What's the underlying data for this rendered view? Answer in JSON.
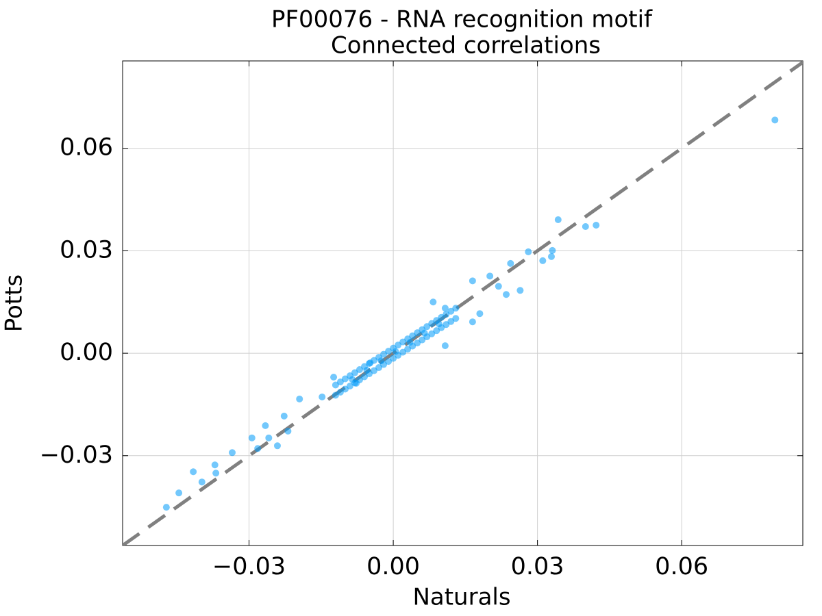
{
  "chart_data": {
    "type": "scatter",
    "title": "PF00076 - RNA recognition motif",
    "subtitle": "Connected correlations",
    "x_label": "Naturals",
    "y_label": "Potts",
    "xlim": [
      -0.0563,
      0.0852
    ],
    "ylim": [
      -0.0563,
      0.0856
    ],
    "xticks": [
      {
        "value": -0.03,
        "label": "−0.03"
      },
      {
        "value": 0,
        "label": "0.00"
      },
      0.03,
      0.06
    ],
    "yticks": [
      {
        "value": -0.03,
        "label": "−0.03"
      },
      {
        "value": 0,
        "label": "0.00"
      },
      0.03,
      0.06
    ],
    "grid": true,
    "diagonal_line": true,
    "diagonal_color": "#808080",
    "x": [
      0.0794,
      0.0343,
      0.0422,
      0.04,
      0.0331,
      0.0329,
      0.0311,
      0.0281,
      0.0244,
      0.0264,
      -0.0472,
      -0.0446,
      -0.0416,
      -0.0398,
      -0.0371,
      -0.0369,
      -0.0335,
      -0.0294,
      -0.0282,
      -0.0259,
      -0.0241,
      -0.0266,
      -0.0227,
      -0.0219,
      -0.0195,
      -0.0148,
      -0.0124,
      0.0201,
      0.0219,
      0.0235,
      0.0165,
      0.018,
      0.0165,
      0.0108,
      0.0083,
      0.0108,
      -0.0077,
      -0.0048,
      -0.012,
      -0.012,
      -0.011,
      -0.011,
      -0.01,
      -0.01,
      -0.009,
      -0.009,
      -0.008,
      -0.008,
      -0.007,
      -0.007,
      -0.006,
      -0.006,
      -0.005,
      -0.005,
      -0.004,
      -0.004,
      -0.003,
      -0.003,
      -0.002,
      -0.002,
      -0.001,
      -0.001,
      0,
      0,
      0.001,
      0.001,
      0.002,
      0.002,
      0.003,
      0.003,
      0.004,
      0.004,
      0.005,
      0.005,
      0.006,
      0.006,
      0.007,
      0.007,
      0.008,
      0.008,
      0.009,
      0.009,
      0.01,
      0.01,
      0.011,
      0.011,
      0.012,
      0.012,
      0.013,
      0.013,
      -0.0055,
      -0.0025,
      0.0005,
      0.0035,
      0.0065,
      0.0095,
      -0.0085
    ],
    "series": [
      {
        "color": "#009af9",
        "values": [
          0.0683,
          0.0391,
          0.0375,
          0.0371,
          0.0301,
          0.0283,
          0.0271,
          0.0297,
          0.0263,
          0.0184,
          -0.0451,
          -0.0409,
          -0.0347,
          -0.0377,
          -0.0327,
          -0.0351,
          -0.0291,
          -0.0248,
          -0.0279,
          -0.0248,
          -0.0271,
          -0.0212,
          -0.0184,
          -0.0228,
          -0.0134,
          -0.0128,
          -0.007,
          0.0226,
          0.0196,
          0.0172,
          0.0212,
          0.0116,
          0.0092,
          0.0022,
          0.015,
          0.0132,
          -0.0088,
          -0.0028,
          -0.0093,
          -0.0123,
          -0.0084,
          -0.0114,
          -0.0075,
          -0.0105,
          -0.0066,
          -0.0096,
          -0.0057,
          -0.0087,
          -0.0048,
          -0.0078,
          -0.0039,
          -0.0069,
          -0.003,
          -0.006,
          -0.0021,
          -0.0051,
          -0.0012,
          -0.0042,
          -0.0003,
          -0.0033,
          0.0006,
          -0.0024,
          0.0015,
          -0.0015,
          0.0024,
          -0.0006,
          0.0033,
          0.0003,
          0.0042,
          0.0012,
          0.0051,
          0.0021,
          0.006,
          0.003,
          0.0069,
          0.0039,
          0.0078,
          0.0048,
          0.0087,
          0.0057,
          0.0096,
          0.0066,
          0.0105,
          0.0075,
          0.0114,
          0.0084,
          0.0123,
          0.0093,
          0.0132,
          0.0102,
          -0.005,
          -0.0022,
          0.0005,
          0.0032,
          0.0059,
          0.0086,
          -0.0077
        ]
      }
    ]
  }
}
